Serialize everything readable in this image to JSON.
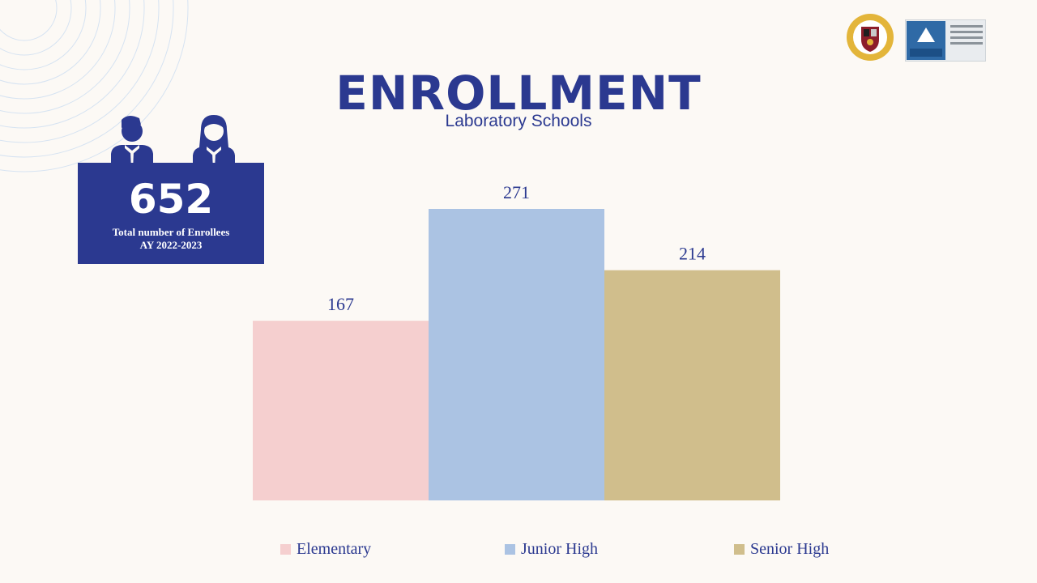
{
  "title": "ENROLLMENT",
  "subtitle": "Laboratory Schools",
  "total": {
    "value": "652",
    "label_line1": "Total number of Enrollees",
    "label_line2": "AY 2022-2023"
  },
  "colors": {
    "navy": "#2b3990",
    "elementary": "#f5cfcf",
    "junior_high": "#abc3e3",
    "senior_high": "#d0be8c"
  },
  "chart_data": {
    "type": "bar",
    "categories": [
      "Elementary",
      "Junior High",
      "Senior High"
    ],
    "values": [
      167,
      271,
      214
    ],
    "colors": [
      "#f5cfcf",
      "#abc3e3",
      "#d0be8c"
    ],
    "ylim": [
      0,
      271
    ],
    "grid": false,
    "legend": "bottom",
    "data_labels": [
      "167",
      "271",
      "214"
    ]
  }
}
